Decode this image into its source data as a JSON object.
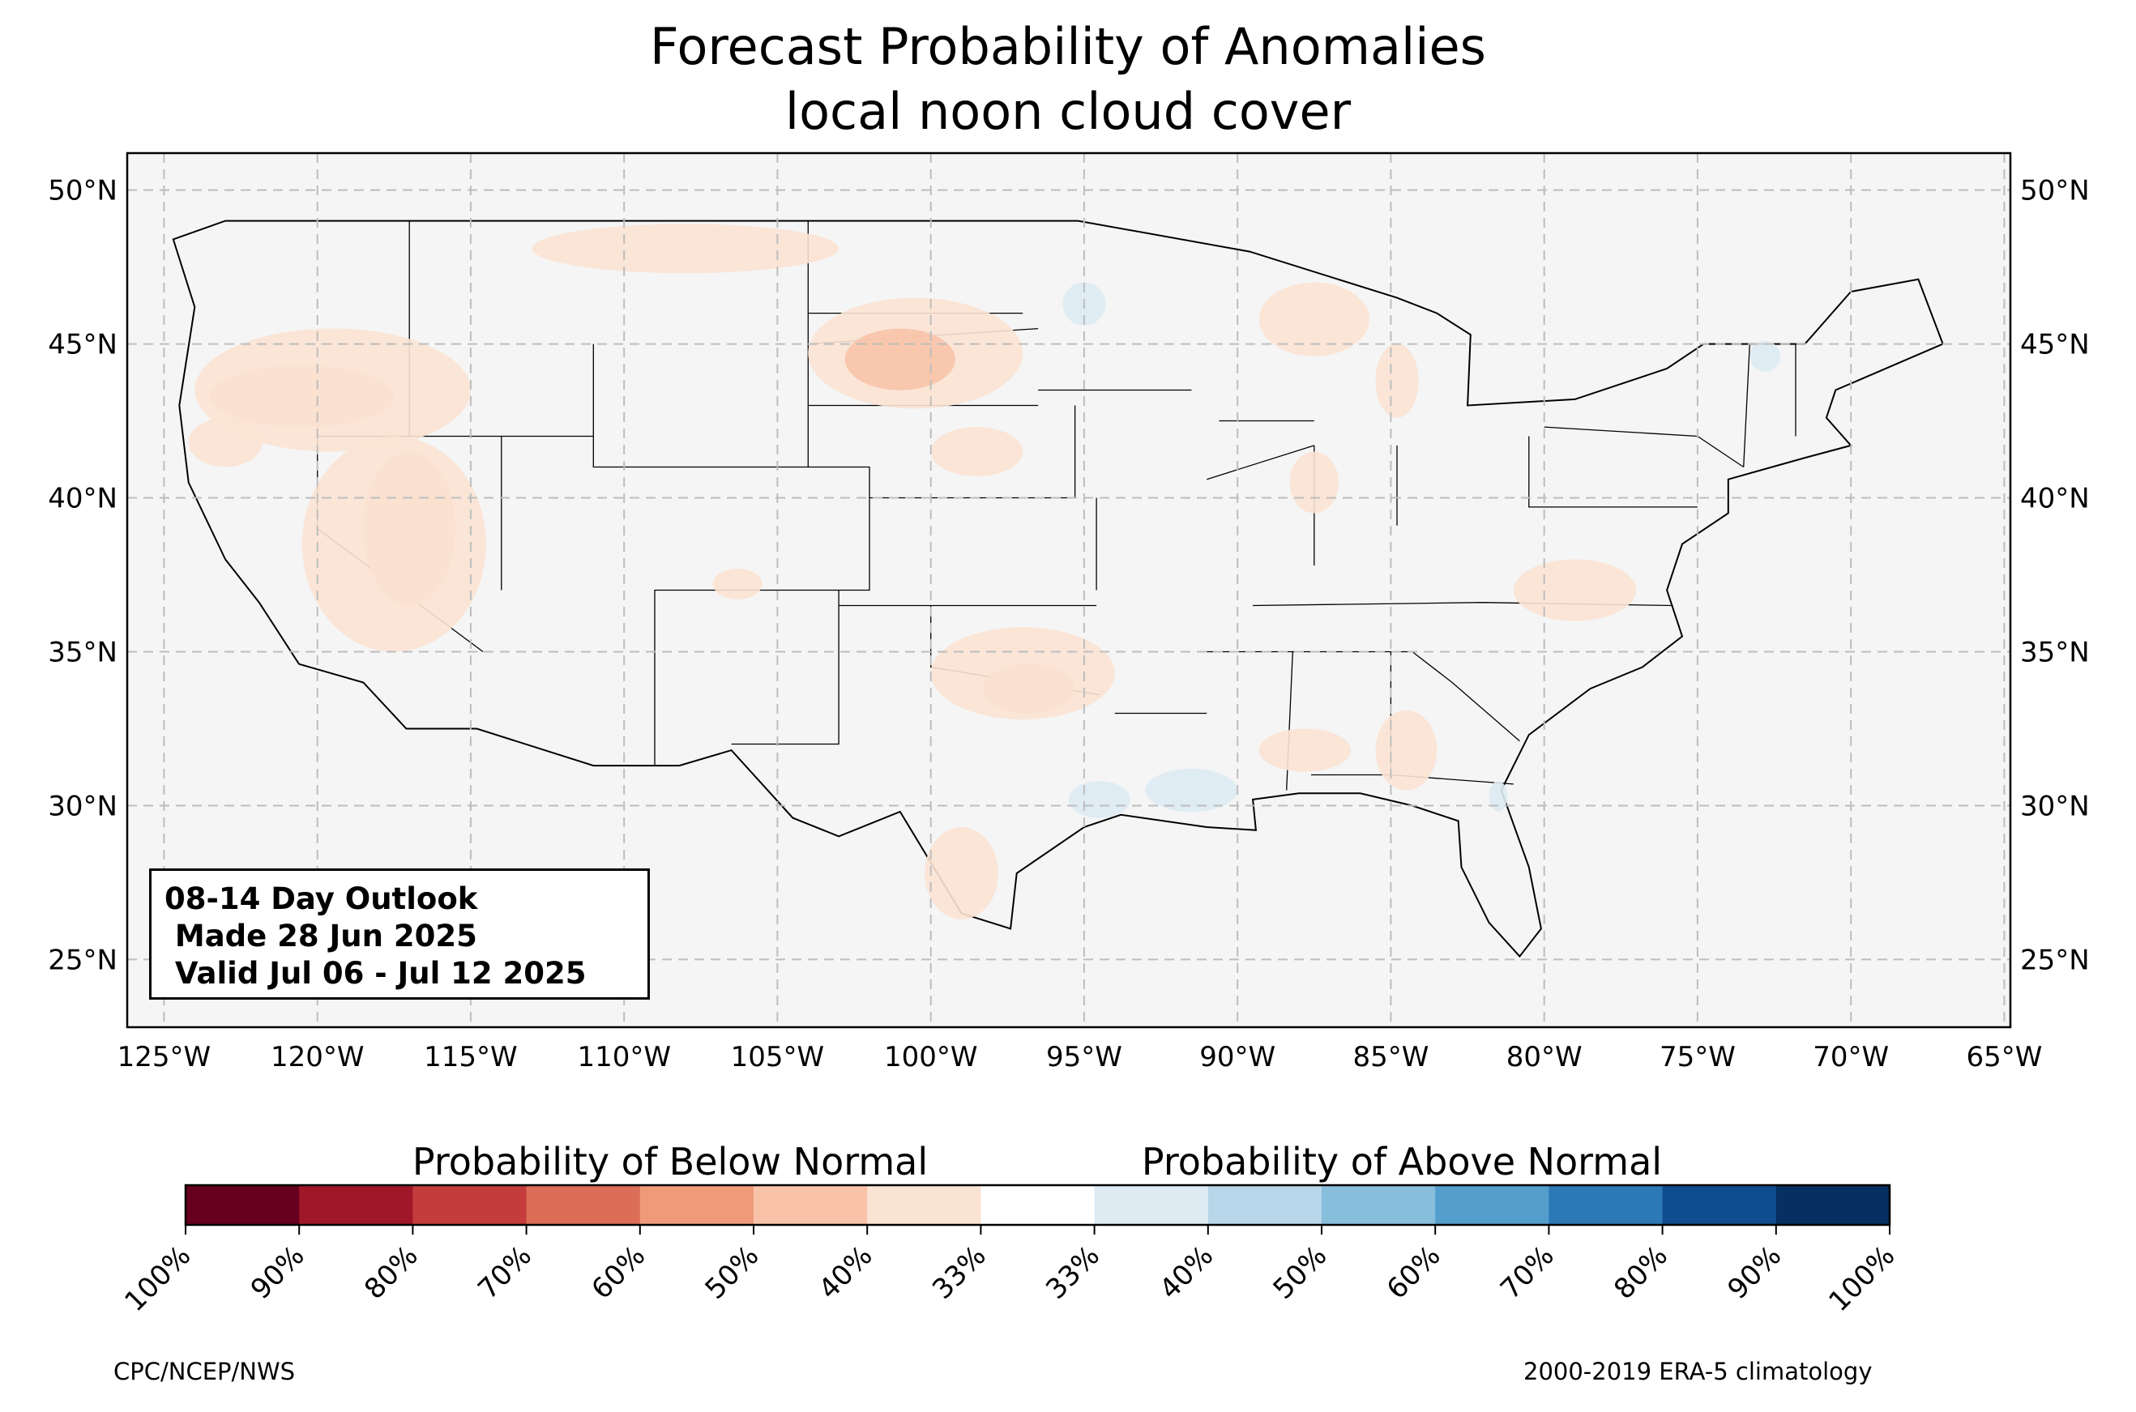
{
  "title": {
    "line1": "Forecast Probability of Anomalies",
    "line2": "local noon cloud cover"
  },
  "map": {
    "extent": {
      "lon_min": -126.2,
      "lon_max": -64.8,
      "lat_min": 22.8,
      "lat_max": 51.2
    },
    "lat_ticks": [
      {
        "value": 50,
        "label": "50°N"
      },
      {
        "value": 45,
        "label": "45°N"
      },
      {
        "value": 40,
        "label": "40°N"
      },
      {
        "value": 35,
        "label": "35°N"
      },
      {
        "value": 30,
        "label": "30°N"
      },
      {
        "value": 25,
        "label": "25°N"
      }
    ],
    "lon_ticks": [
      {
        "value": -125,
        "label": "125°W"
      },
      {
        "value": -120,
        "label": "120°W"
      },
      {
        "value": -115,
        "label": "115°W"
      },
      {
        "value": -110,
        "label": "110°W"
      },
      {
        "value": -105,
        "label": "105°W"
      },
      {
        "value": -100,
        "label": "100°W"
      },
      {
        "value": -95,
        "label": "95°W"
      },
      {
        "value": -90,
        "label": "90°W"
      },
      {
        "value": -85,
        "label": "85°W"
      },
      {
        "value": -80,
        "label": "80°W"
      },
      {
        "value": -75,
        "label": "75°W"
      },
      {
        "value": -70,
        "label": "70°W"
      },
      {
        "value": -65,
        "label": "65°W"
      }
    ],
    "grid": true,
    "background_color": "#f5f5f5"
  },
  "outlook": {
    "line1": "08-14 Day Outlook",
    "line2": " Made 28 Jun 2025",
    "line3": " Valid Jul 06 - Jul 12 2025"
  },
  "colorbar": {
    "below_label": "Probability of Below Normal",
    "above_label": "Probability of Above Normal",
    "colors": [
      "#67001f",
      "#a0172a",
      "#c43c3c",
      "#dc6e57",
      "#ef9b7a",
      "#f8c3a8",
      "#fbe3d4",
      "#ffffff",
      "#deebf3",
      "#b7d6e9",
      "#87bedc",
      "#549ecc",
      "#2c79b6",
      "#104d8e",
      "#053061"
    ],
    "tick_labels": [
      "100%",
      "90%",
      "80%",
      "70%",
      "60%",
      "50%",
      "40%",
      "33%",
      "33%",
      "40%",
      "50%",
      "60%",
      "70%",
      "80%",
      "90%",
      "100%"
    ]
  },
  "anomaly_regions": [
    {
      "category": "below",
      "level": 50,
      "lon": -120.5,
      "lat": 43.3,
      "rx": 3.0,
      "ry": 1.0
    },
    {
      "category": "below",
      "level": 40,
      "lon": -119.5,
      "lat": 43.5,
      "rx": 4.5,
      "ry": 2.0
    },
    {
      "category": "below",
      "level": 50,
      "lon": -117.0,
      "lat": 39.0,
      "rx": 1.5,
      "ry": 2.5
    },
    {
      "category": "below",
      "level": 40,
      "lon": -117.5,
      "lat": 38.5,
      "rx": 3.0,
      "ry": 3.5
    },
    {
      "category": "below",
      "level": 40,
      "lon": -123.0,
      "lat": 41.8,
      "rx": 1.2,
      "ry": 0.8
    },
    {
      "category": "below",
      "level": 40,
      "lon": -108.0,
      "lat": 48.1,
      "rx": 5.0,
      "ry": 0.8
    },
    {
      "category": "below",
      "level": 40,
      "lon": -100.5,
      "lat": 44.7,
      "rx": 3.5,
      "ry": 1.8
    },
    {
      "category": "below",
      "level": 50,
      "lon": -101.0,
      "lat": 44.5,
      "rx": 1.8,
      "ry": 1.0
    },
    {
      "category": "below",
      "level": 40,
      "lon": -98.5,
      "lat": 41.5,
      "rx": 1.5,
      "ry": 0.8
    },
    {
      "category": "below",
      "level": 50,
      "lon": -96.8,
      "lat": 33.8,
      "rx": 1.5,
      "ry": 0.8
    },
    {
      "category": "below",
      "level": 40,
      "lon": -97.0,
      "lat": 34.3,
      "rx": 3.0,
      "ry": 1.5
    },
    {
      "category": "below",
      "level": 40,
      "lon": -99.0,
      "lat": 27.8,
      "rx": 1.2,
      "ry": 1.5
    },
    {
      "category": "below",
      "level": 40,
      "lon": -87.5,
      "lat": 45.8,
      "rx": 1.8,
      "ry": 1.2
    },
    {
      "category": "below",
      "level": 40,
      "lon": -84.8,
      "lat": 43.8,
      "rx": 0.7,
      "ry": 1.2
    },
    {
      "category": "below",
      "level": 40,
      "lon": -87.5,
      "lat": 40.5,
      "rx": 0.8,
      "ry": 1.0
    },
    {
      "category": "below",
      "level": 40,
      "lon": -84.5,
      "lat": 31.8,
      "rx": 1.0,
      "ry": 1.3
    },
    {
      "category": "below",
      "level": 40,
      "lon": -87.8,
      "lat": 31.8,
      "rx": 1.5,
      "ry": 0.7
    },
    {
      "category": "below",
      "level": 40,
      "lon": -79.0,
      "lat": 37.0,
      "rx": 2.0,
      "ry": 1.0
    },
    {
      "category": "below",
      "level": 40,
      "lon": -106.3,
      "lat": 37.2,
      "rx": 0.8,
      "ry": 0.5
    },
    {
      "category": "above",
      "level": 40,
      "lon": -91.5,
      "lat": 30.5,
      "rx": 1.5,
      "ry": 0.7
    },
    {
      "category": "above",
      "level": 40,
      "lon": -94.5,
      "lat": 30.2,
      "rx": 1.0,
      "ry": 0.6
    },
    {
      "category": "above",
      "level": 40,
      "lon": -95.0,
      "lat": 46.3,
      "rx": 0.7,
      "ry": 0.7
    },
    {
      "category": "above",
      "level": 40,
      "lon": -72.8,
      "lat": 44.6,
      "rx": 0.5,
      "ry": 0.5
    },
    {
      "category": "above",
      "level": 40,
      "lon": -81.5,
      "lat": 30.3,
      "rx": 0.3,
      "ry": 0.5
    }
  ],
  "credits": {
    "left": "CPC/NCEP/NWS",
    "right": "2000-2019 ERA-5 climatology"
  }
}
